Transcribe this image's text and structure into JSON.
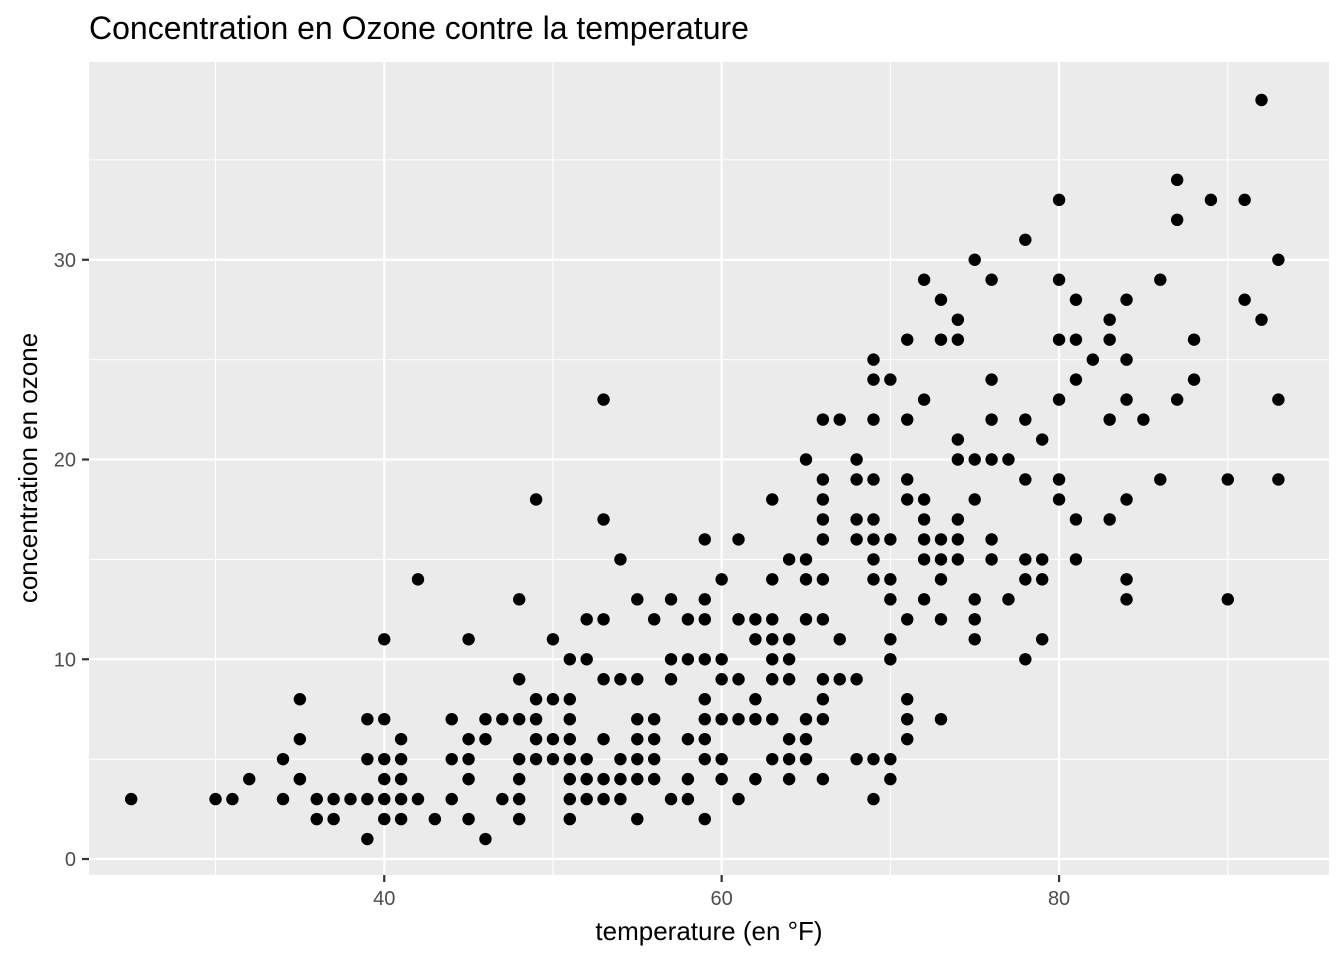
{
  "chart_data": {
    "type": "scatter",
    "title": "Concentration en Ozone contre la temperature",
    "xlabel": "temperature (en °F)",
    "ylabel": "concentration en ozone",
    "xlim": [
      22.5,
      96
    ],
    "ylim": [
      -0.8,
      39.9
    ],
    "x_ticks": [
      40,
      60,
      80
    ],
    "y_ticks": [
      0,
      10,
      20,
      30
    ],
    "x_tick_labels": [
      "40",
      "60",
      "80"
    ],
    "y_tick_labels": [
      "0",
      "10",
      "20",
      "30"
    ],
    "x_minor": [
      30,
      50,
      70,
      90
    ],
    "y_minor": [
      5,
      15,
      25,
      35
    ],
    "grid": true,
    "legend": "none",
    "colors": {
      "panel": "#ebebeb",
      "grid": "#ffffff",
      "points": "#000000"
    },
    "points": [
      [
        25,
        3
      ],
      [
        30,
        3
      ],
      [
        31,
        3
      ],
      [
        32,
        4
      ],
      [
        34,
        5
      ],
      [
        34,
        3
      ],
      [
        35,
        8
      ],
      [
        35,
        6
      ],
      [
        35,
        4
      ],
      [
        35,
        4
      ],
      [
        36,
        3
      ],
      [
        36,
        2
      ],
      [
        37,
        3
      ],
      [
        37,
        2
      ],
      [
        38,
        3
      ],
      [
        39,
        7
      ],
      [
        39,
        5
      ],
      [
        39,
        3
      ],
      [
        39,
        1
      ],
      [
        40,
        11
      ],
      [
        40,
        7
      ],
      [
        40,
        5
      ],
      [
        40,
        4
      ],
      [
        40,
        3
      ],
      [
        40,
        2
      ],
      [
        41,
        6
      ],
      [
        41,
        5
      ],
      [
        41,
        4
      ],
      [
        41,
        3
      ],
      [
        41,
        2
      ],
      [
        42,
        14
      ],
      [
        42,
        3
      ],
      [
        43,
        2
      ],
      [
        44,
        7
      ],
      [
        44,
        5
      ],
      [
        44,
        3
      ],
      [
        45,
        11
      ],
      [
        45,
        6
      ],
      [
        45,
        5
      ],
      [
        45,
        4
      ],
      [
        45,
        2
      ],
      [
        46,
        7
      ],
      [
        46,
        6
      ],
      [
        46,
        1
      ],
      [
        47,
        7
      ],
      [
        47,
        3
      ],
      [
        48,
        13
      ],
      [
        48,
        9
      ],
      [
        48,
        7
      ],
      [
        48,
        5
      ],
      [
        48,
        4
      ],
      [
        48,
        3
      ],
      [
        48,
        2
      ],
      [
        49,
        18
      ],
      [
        49,
        8
      ],
      [
        49,
        7
      ],
      [
        49,
        6
      ],
      [
        49,
        5
      ],
      [
        50,
        8
      ],
      [
        50,
        6
      ],
      [
        50,
        5
      ],
      [
        50,
        11
      ],
      [
        51,
        8
      ],
      [
        51,
        7
      ],
      [
        51,
        6
      ],
      [
        51,
        5
      ],
      [
        51,
        4
      ],
      [
        51,
        3
      ],
      [
        51,
        2
      ],
      [
        51,
        10
      ],
      [
        52,
        12
      ],
      [
        52,
        10
      ],
      [
        52,
        5
      ],
      [
        52,
        4
      ],
      [
        52,
        3
      ],
      [
        53,
        23
      ],
      [
        53,
        17
      ],
      [
        53,
        12
      ],
      [
        53,
        9
      ],
      [
        53,
        6
      ],
      [
        53,
        4
      ],
      [
        53,
        3
      ],
      [
        54,
        15
      ],
      [
        54,
        9
      ],
      [
        54,
        5
      ],
      [
        54,
        4
      ],
      [
        54,
        3
      ],
      [
        55,
        13
      ],
      [
        55,
        9
      ],
      [
        55,
        7
      ],
      [
        55,
        6
      ],
      [
        55,
        5
      ],
      [
        55,
        4
      ],
      [
        55,
        2
      ],
      [
        56,
        12
      ],
      [
        56,
        7
      ],
      [
        56,
        6
      ],
      [
        56,
        5
      ],
      [
        56,
        4
      ],
      [
        57,
        13
      ],
      [
        57,
        10
      ],
      [
        57,
        9
      ],
      [
        57,
        3
      ],
      [
        58,
        12
      ],
      [
        58,
        10
      ],
      [
        58,
        6
      ],
      [
        58,
        4
      ],
      [
        58,
        3
      ],
      [
        59,
        16
      ],
      [
        59,
        13
      ],
      [
        59,
        12
      ],
      [
        59,
        10
      ],
      [
        59,
        8
      ],
      [
        59,
        7
      ],
      [
        59,
        6
      ],
      [
        59,
        5
      ],
      [
        59,
        2
      ],
      [
        60,
        14
      ],
      [
        60,
        10
      ],
      [
        60,
        9
      ],
      [
        60,
        7
      ],
      [
        60,
        5
      ],
      [
        60,
        4
      ],
      [
        61,
        16
      ],
      [
        61,
        12
      ],
      [
        61,
        9
      ],
      [
        61,
        7
      ],
      [
        61,
        3
      ],
      [
        62,
        12
      ],
      [
        62,
        11
      ],
      [
        62,
        8
      ],
      [
        62,
        7
      ],
      [
        62,
        4
      ],
      [
        63,
        18
      ],
      [
        63,
        14
      ],
      [
        63,
        12
      ],
      [
        63,
        11
      ],
      [
        63,
        10
      ],
      [
        63,
        9
      ],
      [
        63,
        7
      ],
      [
        63,
        5
      ],
      [
        64,
        15
      ],
      [
        64,
        11
      ],
      [
        64,
        10
      ],
      [
        64,
        9
      ],
      [
        64,
        6
      ],
      [
        64,
        5
      ],
      [
        64,
        4
      ],
      [
        65,
        20
      ],
      [
        65,
        15
      ],
      [
        65,
        14
      ],
      [
        65,
        12
      ],
      [
        65,
        7
      ],
      [
        65,
        6
      ],
      [
        65,
        5
      ],
      [
        66,
        22
      ],
      [
        66,
        19
      ],
      [
        66,
        18
      ],
      [
        66,
        17
      ],
      [
        66,
        16
      ],
      [
        66,
        14
      ],
      [
        66,
        12
      ],
      [
        66,
        9
      ],
      [
        66,
        8
      ],
      [
        66,
        7
      ],
      [
        66,
        4
      ],
      [
        67,
        22
      ],
      [
        67,
        11
      ],
      [
        67,
        9
      ],
      [
        68,
        20
      ],
      [
        68,
        19
      ],
      [
        68,
        17
      ],
      [
        68,
        16
      ],
      [
        68,
        9
      ],
      [
        68,
        5
      ],
      [
        69,
        25
      ],
      [
        69,
        24
      ],
      [
        69,
        22
      ],
      [
        69,
        19
      ],
      [
        69,
        17
      ],
      [
        69,
        16
      ],
      [
        69,
        15
      ],
      [
        69,
        14
      ],
      [
        69,
        5
      ],
      [
        69,
        3
      ],
      [
        70,
        24
      ],
      [
        70,
        16
      ],
      [
        70,
        14
      ],
      [
        70,
        13
      ],
      [
        70,
        11
      ],
      [
        70,
        10
      ],
      [
        70,
        5
      ],
      [
        70,
        4
      ],
      [
        71,
        26
      ],
      [
        71,
        22
      ],
      [
        71,
        19
      ],
      [
        71,
        18
      ],
      [
        71,
        12
      ],
      [
        71,
        8
      ],
      [
        71,
        7
      ],
      [
        71,
        6
      ],
      [
        72,
        29
      ],
      [
        72,
        23
      ],
      [
        72,
        18
      ],
      [
        72,
        17
      ],
      [
        72,
        16
      ],
      [
        72,
        15
      ],
      [
        72,
        13
      ],
      [
        73,
        28
      ],
      [
        73,
        26
      ],
      [
        73,
        16
      ],
      [
        73,
        15
      ],
      [
        73,
        14
      ],
      [
        73,
        12
      ],
      [
        73,
        7
      ],
      [
        74,
        27
      ],
      [
        74,
        26
      ],
      [
        74,
        21
      ],
      [
        74,
        20
      ],
      [
        74,
        17
      ],
      [
        74,
        16
      ],
      [
        74,
        15
      ],
      [
        75,
        30
      ],
      [
        75,
        20
      ],
      [
        75,
        18
      ],
      [
        75,
        13
      ],
      [
        75,
        12
      ],
      [
        75,
        11
      ],
      [
        76,
        29
      ],
      [
        76,
        24
      ],
      [
        76,
        22
      ],
      [
        76,
        20
      ],
      [
        76,
        16
      ],
      [
        76,
        15
      ],
      [
        77,
        20
      ],
      [
        77,
        13
      ],
      [
        78,
        31
      ],
      [
        78,
        22
      ],
      [
        78,
        19
      ],
      [
        78,
        15
      ],
      [
        78,
        14
      ],
      [
        78,
        10
      ],
      [
        79,
        21
      ],
      [
        79,
        15
      ],
      [
        79,
        14
      ],
      [
        79,
        11
      ],
      [
        80,
        33
      ],
      [
        80,
        29
      ],
      [
        80,
        26
      ],
      [
        80,
        23
      ],
      [
        80,
        19
      ],
      [
        80,
        18
      ],
      [
        81,
        28
      ],
      [
        81,
        26
      ],
      [
        81,
        24
      ],
      [
        81,
        17
      ],
      [
        81,
        15
      ],
      [
        82,
        25
      ],
      [
        83,
        27
      ],
      [
        83,
        26
      ],
      [
        83,
        22
      ],
      [
        83,
        17
      ],
      [
        84,
        28
      ],
      [
        84,
        25
      ],
      [
        84,
        23
      ],
      [
        84,
        18
      ],
      [
        84,
        14
      ],
      [
        84,
        13
      ],
      [
        85,
        22
      ],
      [
        86,
        29
      ],
      [
        86,
        19
      ],
      [
        87,
        34
      ],
      [
        87,
        32
      ],
      [
        87,
        23
      ],
      [
        88,
        26
      ],
      [
        88,
        24
      ],
      [
        89,
        33
      ],
      [
        90,
        19
      ],
      [
        90,
        13
      ],
      [
        91,
        33
      ],
      [
        91,
        28
      ],
      [
        92,
        38
      ],
      [
        92,
        27
      ],
      [
        93,
        30
      ],
      [
        93,
        23
      ],
      [
        93,
        19
      ]
    ]
  }
}
